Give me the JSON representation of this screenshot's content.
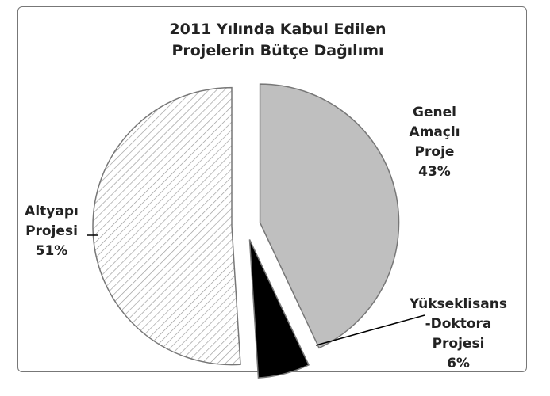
{
  "chart_data": {
    "type": "pie",
    "title": "2011 Yılında Kabul Edilen Projelerin Bütçe Dağılımı",
    "categories": [
      "Genel Amaçlı Proje",
      "Yükseklisans -Doktora Projesi",
      "Altyapı Projesi"
    ],
    "values": [
      43,
      6,
      51
    ],
    "value_labels": [
      "43%",
      "6%",
      "51%"
    ],
    "colors": [
      "#bfbfbf",
      "#000000",
      "#ffffff"
    ],
    "hatch": [
      false,
      false,
      true
    ]
  }
}
